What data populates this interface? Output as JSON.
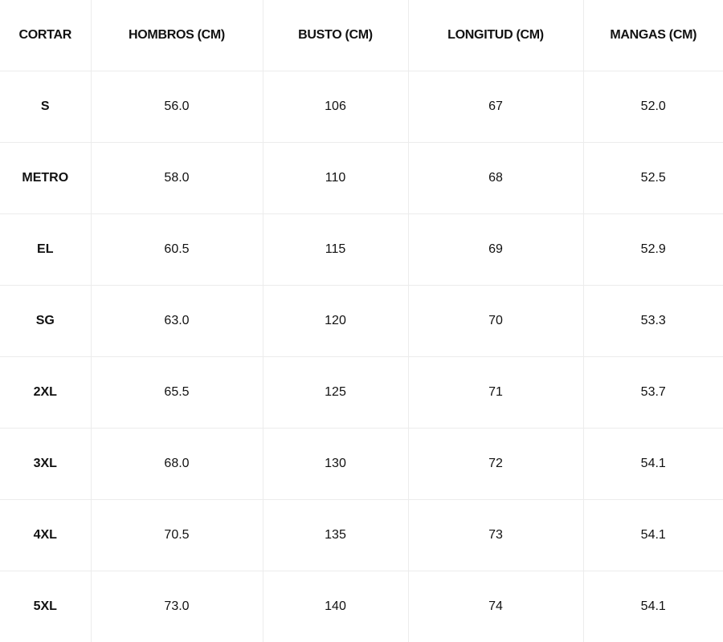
{
  "table": {
    "header": [
      "CORTAR",
      "HOMBROS (CM)",
      "BUSTO (CM)",
      "LONGITUD (CM)",
      "MANGAS (CM)"
    ],
    "rows": [
      [
        "S",
        "56.0",
        "106",
        "67",
        "52.0"
      ],
      [
        "METRO",
        "58.0",
        "110",
        "68",
        "52.5"
      ],
      [
        "EL",
        "60.5",
        "115",
        "69",
        "52.9"
      ],
      [
        "SG",
        "63.0",
        "120",
        "70",
        "53.3"
      ],
      [
        "2XL",
        "65.5",
        "125",
        "71",
        "53.7"
      ],
      [
        "3XL",
        "68.0",
        "130",
        "72",
        "54.1"
      ],
      [
        "4XL",
        "70.5",
        "135",
        "73",
        "54.1"
      ],
      [
        "5XL",
        "73.0",
        "140",
        "74",
        "54.1"
      ]
    ]
  }
}
